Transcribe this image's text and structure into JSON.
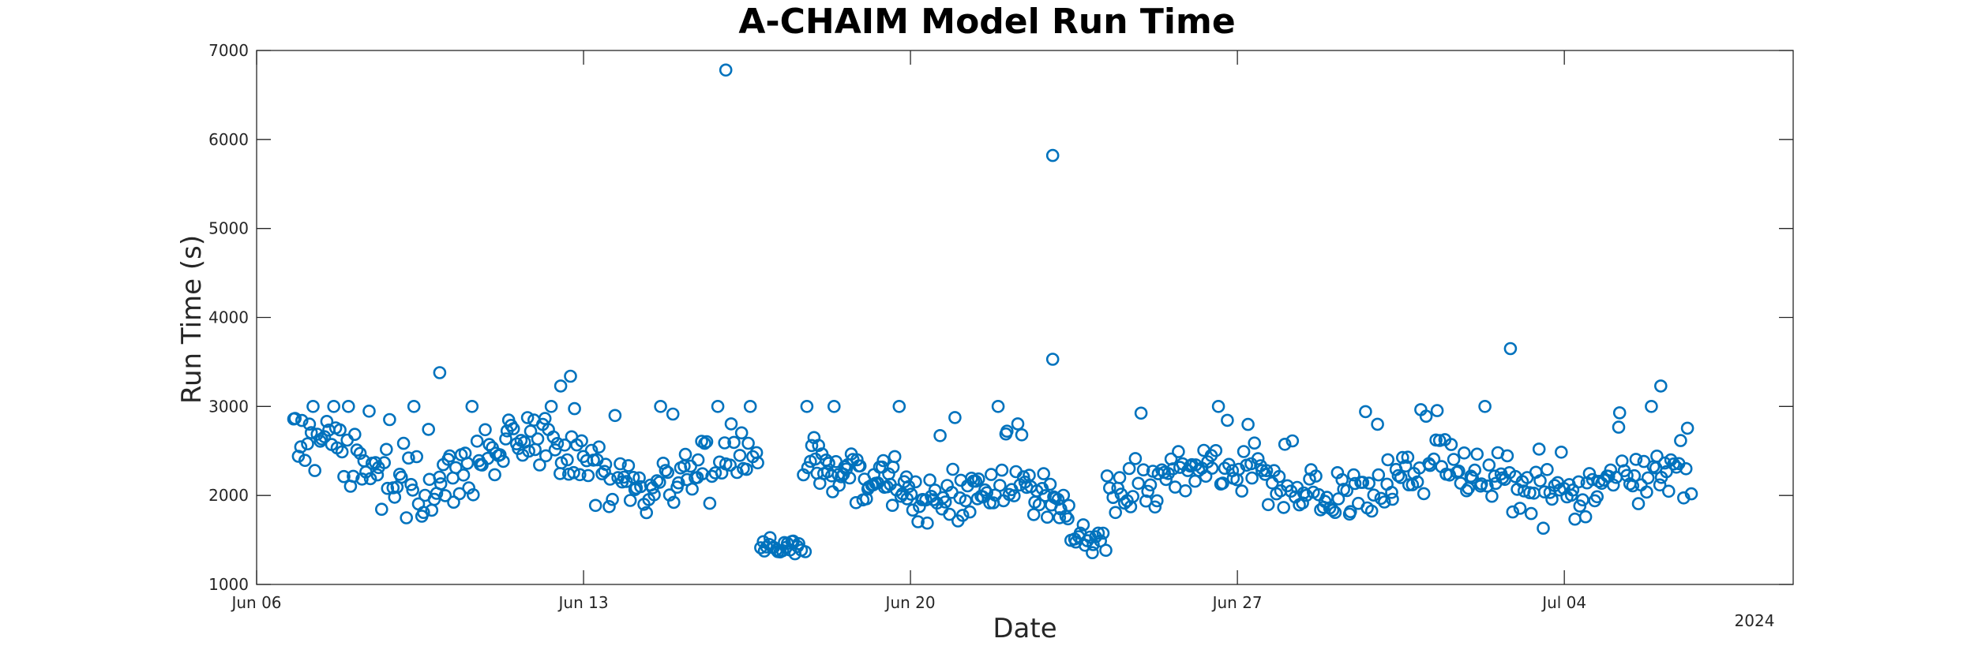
{
  "chart_data": {
    "type": "scatter",
    "title": "A-CHAIM Model Run Time",
    "xlabel": "Date",
    "ylabel": "Run Time (s)",
    "year_label": "2024",
    "x_unit": "days since Jun 06 2024",
    "xlim": [
      0,
      47
    ],
    "ylim": [
      1000,
      7000
    ],
    "x_ticks": [
      {
        "value": 0,
        "label": "Jun 06"
      },
      {
        "value": 10,
        "label": "Jun 13"
      },
      {
        "value": 20,
        "label": "Jun 20"
      },
      {
        "value": 30,
        "label": "Jun 27"
      },
      {
        "value": 40,
        "label": "Jul 04"
      }
    ],
    "y_ticks": [
      {
        "value": 1000,
        "label": "1000"
      },
      {
        "value": 2000,
        "label": "2000"
      },
      {
        "value": 3000,
        "label": "3000"
      },
      {
        "value": 4000,
        "label": "4000"
      },
      {
        "value": 5000,
        "label": "5000"
      },
      {
        "value": 6000,
        "label": "6000"
      },
      {
        "value": 7000,
        "label": "7000"
      }
    ],
    "grid": false,
    "marker": "circle-open",
    "color": "#0072BD",
    "outliers": [
      {
        "x": 14.35,
        "y": 6780
      },
      {
        "x": 24.35,
        "y": 5820
      },
      {
        "x": 24.35,
        "y": 3530
      },
      {
        "x": 38.35,
        "y": 3650
      },
      {
        "x": 42.95,
        "y": 3230
      },
      {
        "x": 5.6,
        "y": 3380
      },
      {
        "x": 9.3,
        "y": 3230
      },
      {
        "x": 9.6,
        "y": 3340
      }
    ],
    "segments": [
      {
        "x0": 1.1,
        "x1": 13.9,
        "n": 190,
        "base": 2350,
        "amp": 260,
        "spread": 330
      },
      {
        "x0": 13.9,
        "x1": 15.4,
        "n": 20,
        "base": 2350,
        "amp": 200,
        "spread": 320
      },
      {
        "x0": 15.4,
        "x1": 16.8,
        "n": 24,
        "base": 1370,
        "amp": 60,
        "spread": 90
      },
      {
        "x0": 16.8,
        "x1": 20.0,
        "n": 60,
        "base": 2350,
        "amp": 180,
        "spread": 330
      },
      {
        "x0": 20.0,
        "x1": 24.9,
        "n": 80,
        "base": 1950,
        "amp": 120,
        "spread": 270
      },
      {
        "x0": 24.9,
        "x1": 26.0,
        "n": 16,
        "base": 1580,
        "amp": 80,
        "spread": 150
      },
      {
        "x0": 26.0,
        "x1": 43.9,
        "n": 250,
        "base": 2150,
        "amp": 170,
        "spread": 300
      }
    ]
  }
}
